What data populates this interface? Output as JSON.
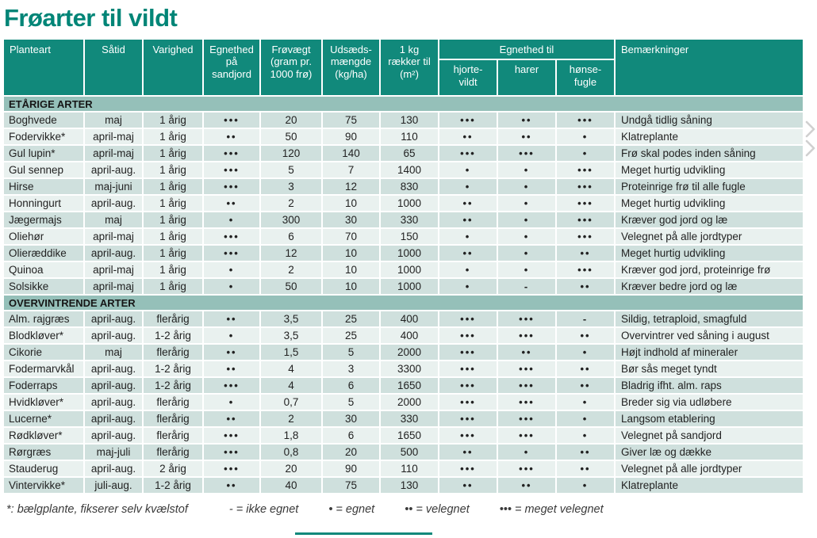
{
  "title": "Frøarter til vildt",
  "colors": {
    "accent": "#11897b",
    "title": "#008577",
    "band": "#95c0b9",
    "row-dark": "#cfe0dd",
    "row-light": "#e9f1ef"
  },
  "table": {
    "headers": {
      "planteart": "Planteart",
      "saatid": "Såtid",
      "varighed": "Varighed",
      "egnethed_sandjord": "Egnethed\npå\nsandjord",
      "froevaegt": "Frøvægt\n(gram pr.\n1000 frø)",
      "udsaedsmaengde": "Udsæds-\nmængde\n(kg/ha)",
      "raekker_til": "1 kg\nrækker til\n(m²)",
      "egnethed_til": "Egnethed til",
      "hjortevildt": "hjorte-\nvildt",
      "harer": "harer",
      "hoensefugle": "hønse-\nfugle",
      "bemaerkninger": "Bemærkninger"
    },
    "sections": [
      {
        "title": "ETÅRIGE ARTER",
        "rows": [
          [
            "Boghvede",
            "maj",
            "1 årig",
            "•••",
            "20",
            "75",
            "130",
            "•••",
            "••",
            "•••",
            "Undgå tidlig såning"
          ],
          [
            "Fodervikke*",
            "april-maj",
            "1 årig",
            "••",
            "50",
            "90",
            "110",
            "••",
            "••",
            "•",
            "Klatreplante"
          ],
          [
            "Gul lupin*",
            "april-maj",
            "1 årig",
            "•••",
            "120",
            "140",
            "65",
            "•••",
            "•••",
            "•",
            "Frø skal podes inden såning"
          ],
          [
            "Gul sennep",
            "april-aug.",
            "1 årig",
            "•••",
            "5",
            "7",
            "1400",
            "•",
            "•",
            "•••",
            "Meget hurtig udvikling"
          ],
          [
            "Hirse",
            "maj-juni",
            "1 årig",
            "•••",
            "3",
            "12",
            "830",
            "•",
            "•",
            "•••",
            "Proteinrige frø til alle fugle"
          ],
          [
            "Honningurt",
            "april-aug.",
            "1 årig",
            "••",
            "2",
            "10",
            "1000",
            "••",
            "•",
            "•••",
            "Meget hurtig udvikling"
          ],
          [
            "Jægermajs",
            "maj",
            "1 årig",
            "•",
            "300",
            "30",
            "330",
            "••",
            "•",
            "•••",
            "Kræver god jord og læ"
          ],
          [
            "Oliehør",
            "april-maj",
            "1 årig",
            "•••",
            "6",
            "70",
            "150",
            "•",
            "•",
            "•••",
            "Velegnet på alle jordtyper"
          ],
          [
            "Olieræddike",
            "april-aug.",
            "1 årig",
            "•••",
            "12",
            "10",
            "1000",
            "••",
            "•",
            "••",
            "Meget hurtig udvikling"
          ],
          [
            "Quinoa",
            "april-maj",
            "1 årig",
            "•",
            "2",
            "10",
            "1000",
            "•",
            "•",
            "•••",
            "Kræver god jord, proteinrige frø"
          ],
          [
            "Solsikke",
            "april-maj",
            "1 årig",
            "•",
            "50",
            "10",
            "1000",
            "•",
            "-",
            "••",
            "Kræver bedre jord og læ"
          ]
        ]
      },
      {
        "title": "OVERVINTRENDE ARTER",
        "rows": [
          [
            "Alm. rajgræs",
            "april-aug.",
            "flerårig",
            "••",
            "3,5",
            "25",
            "400",
            "•••",
            "•••",
            "-",
            "Sildig, tetraploid, smagfuld"
          ],
          [
            "Blodkløver*",
            "april-aug.",
            "1-2 årig",
            "•",
            "3,5",
            "25",
            "400",
            "•••",
            "•••",
            "••",
            "Overvintrer ved såning i august"
          ],
          [
            "Cikorie",
            "maj",
            "flerårig",
            "••",
            "1,5",
            "5",
            "2000",
            "•••",
            "••",
            "•",
            "Højt indhold af mineraler"
          ],
          [
            "Fodermarvkål",
            "april-aug.",
            "1-2 årig",
            "••",
            "4",
            "3",
            "3300",
            "•••",
            "•••",
            "••",
            "Bør sås meget tyndt"
          ],
          [
            "Foderraps",
            "april-aug.",
            "1-2 årig",
            "•••",
            "4",
            "6",
            "1650",
            "•••",
            "•••",
            "••",
            "Bladrig ifht. alm. raps"
          ],
          [
            "Hvidkløver*",
            "april-aug.",
            "flerårig",
            "•",
            "0,7",
            "5",
            "2000",
            "•••",
            "•••",
            "•",
            "Breder sig via udløbere"
          ],
          [
            "Lucerne*",
            "april-aug.",
            "flerårig",
            "••",
            "2",
            "30",
            "330",
            "•••",
            "•••",
            "•",
            "Langsom etablering"
          ],
          [
            "Rødkløver*",
            "april-aug.",
            "flerårig",
            "•••",
            "1,8",
            "6",
            "1650",
            "•••",
            "•••",
            "•",
            "Velegnet på sandjord"
          ],
          [
            "Rørgræs",
            "maj-juli",
            "flerårig",
            "•••",
            "0,8",
            "20",
            "500",
            "••",
            "•",
            "••",
            "Giver læ og dække"
          ],
          [
            "Stauderug",
            "april-aug.",
            "2 årig",
            "•••",
            "20",
            "90",
            "110",
            "•••",
            "•••",
            "••",
            "Velegnet på alle jordtyper"
          ],
          [
            "Vintervikke*",
            "juli-aug.",
            "1-2 årig",
            "••",
            "40",
            "75",
            "130",
            "••",
            "••",
            "•",
            "Klatreplante"
          ]
        ]
      }
    ]
  },
  "footer": {
    "note": "*: bælgplante, fikserer selv kvælstof",
    "legend": [
      "- = ikke egnet",
      "• = egnet",
      "•• = velegnet",
      "••• = meget velegnet"
    ]
  }
}
